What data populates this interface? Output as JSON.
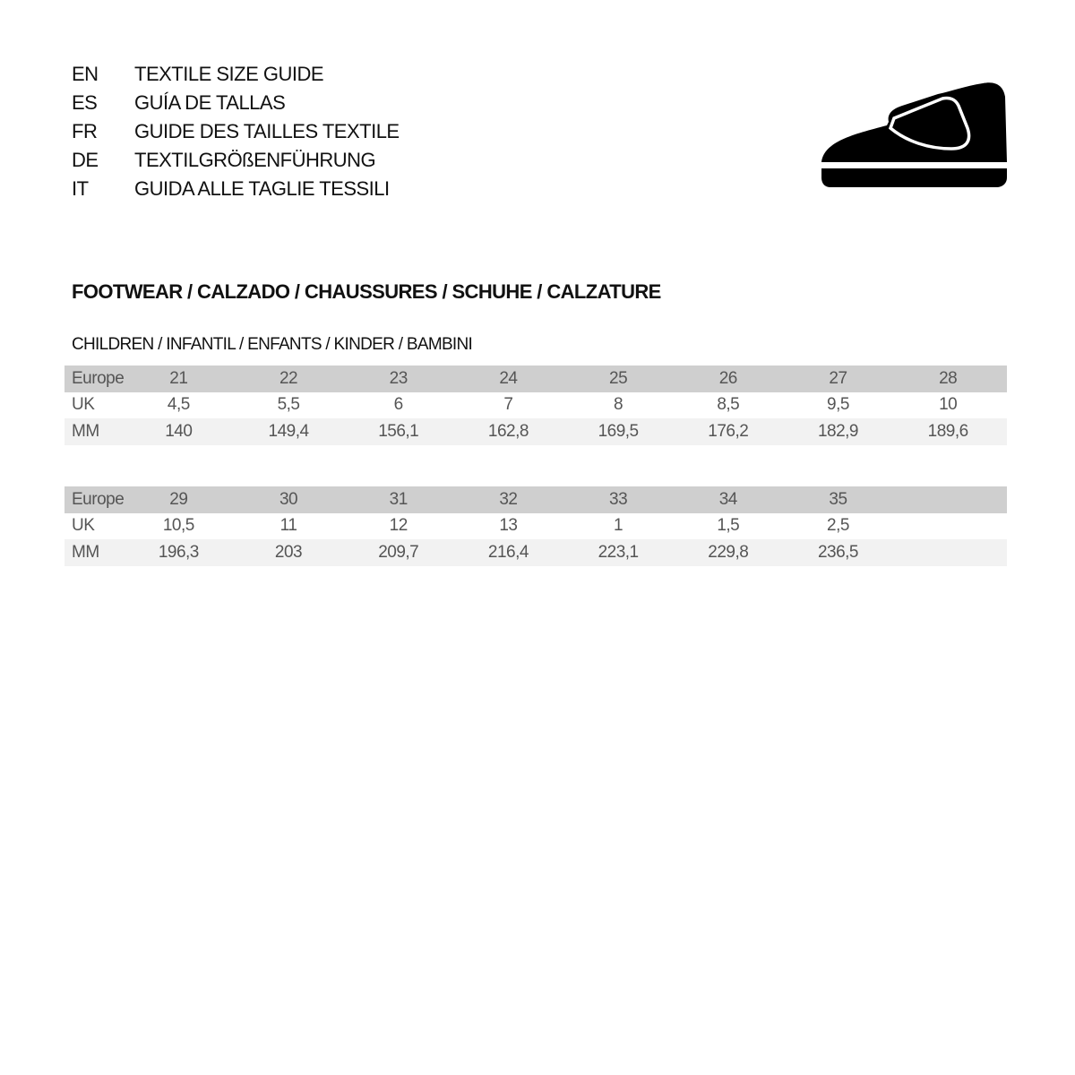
{
  "languages": [
    {
      "code": "EN",
      "title": "TEXTILE SIZE GUIDE"
    },
    {
      "code": "ES",
      "title": "GUÍA DE TALLAS"
    },
    {
      "code": "FR",
      "title": "GUIDE DES TAILLES TEXTILE"
    },
    {
      "code": "DE",
      "title": "TEXTILGRÖßENFÜHRUNG"
    },
    {
      "code": "IT",
      "title": "GUIDA ALLE TAGLIE TESSILI"
    }
  ],
  "icon": "shoe-icon",
  "section_title": "FOOTWEAR / CALZADO / CHAUSSURES / SCHUHE / CALZATURE",
  "subsection_title": "CHILDREN / INFANTIL / ENFANTS / KINDER / BAMBINI",
  "tables": [
    {
      "rows": [
        {
          "label": "Europe",
          "values": [
            "21",
            "22",
            "23",
            "24",
            "25",
            "26",
            "27",
            "28"
          ]
        },
        {
          "label": "UK",
          "values": [
            "4,5",
            "5,5",
            "6",
            "7",
            "8",
            "8,5",
            "9,5",
            "10"
          ]
        },
        {
          "label": "MM",
          "values": [
            "140",
            "149,4",
            "156,1",
            "162,8",
            "169,5",
            "176,2",
            "182,9",
            "189,6"
          ]
        }
      ]
    },
    {
      "rows": [
        {
          "label": "Europe",
          "values": [
            "29",
            "30",
            "31",
            "32",
            "33",
            "34",
            "35"
          ]
        },
        {
          "label": "UK",
          "values": [
            "10,5",
            "11",
            "12",
            "13",
            "1",
            "1,5",
            "2,5"
          ]
        },
        {
          "label": "MM",
          "values": [
            "196,3",
            "203",
            "209,7",
            "216,4",
            "223,1",
            "229,8",
            "236,5"
          ]
        }
      ]
    }
  ],
  "colors": {
    "header_row": "#cfcfcf",
    "mm_row": "#f2f2f2",
    "text": "#555555"
  }
}
